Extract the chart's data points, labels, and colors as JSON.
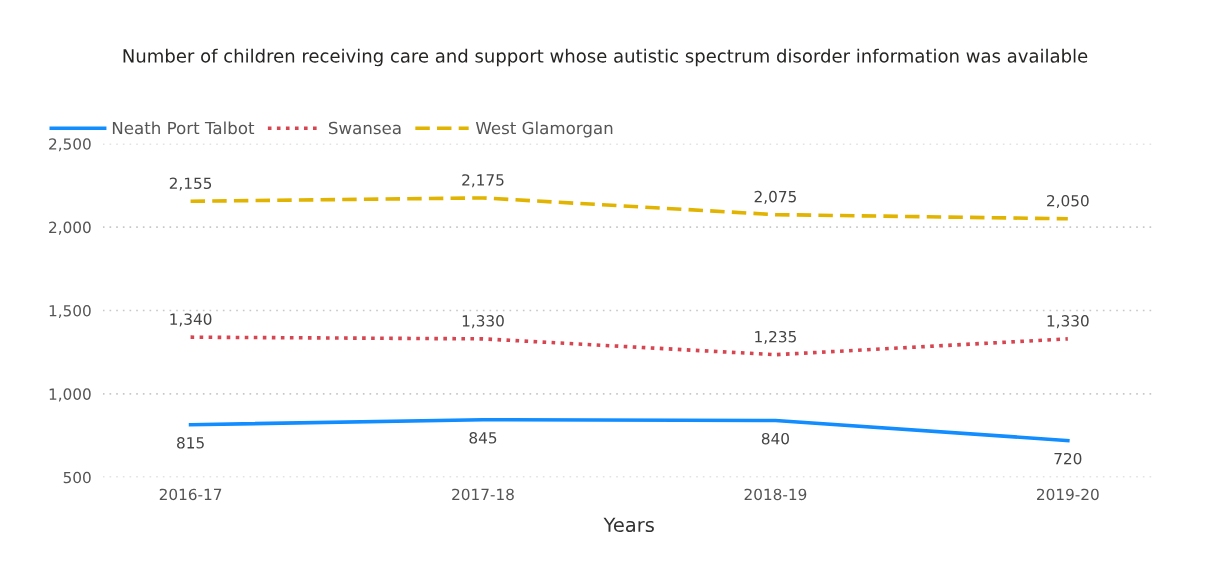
{
  "chart_data": {
    "type": "line",
    "title": "Number of children receiving care and support whose autistic spectrum disorder information was available",
    "xlabel": "Years",
    "categories": [
      "2016-17",
      "2017-18",
      "2018-19",
      "2019-20"
    ],
    "series": [
      {
        "name": "Neath Port Talbot",
        "color": "#118dff",
        "line_style": "solid",
        "values": [
          815,
          845,
          840,
          720
        ],
        "value_labels": [
          "815",
          "845",
          "840",
          "720"
        ]
      },
      {
        "name": "Swansea",
        "color": "#d64550",
        "line_style": "dotted",
        "values": [
          1340,
          1330,
          1235,
          1330
        ],
        "value_labels": [
          "1,340",
          "1,330",
          "1,235",
          "1,330"
        ]
      },
      {
        "name": "West Glamorgan",
        "color": "#e0b400",
        "line_style": "dashed",
        "values": [
          2155,
          2175,
          2075,
          2050
        ],
        "value_labels": [
          "2,155",
          "2,175",
          "2,075",
          "2,050"
        ]
      }
    ],
    "ylim": [
      500,
      2500
    ],
    "yticks": [
      {
        "value": 500,
        "label": "500"
      },
      {
        "value": 1000,
        "label": "1,000"
      },
      {
        "value": 1500,
        "label": "1,500"
      },
      {
        "value": 2000,
        "label": "2,000"
      },
      {
        "value": 2500,
        "label": "2,500"
      }
    ],
    "grid": "y",
    "legend": "top left",
    "marker": "none"
  }
}
